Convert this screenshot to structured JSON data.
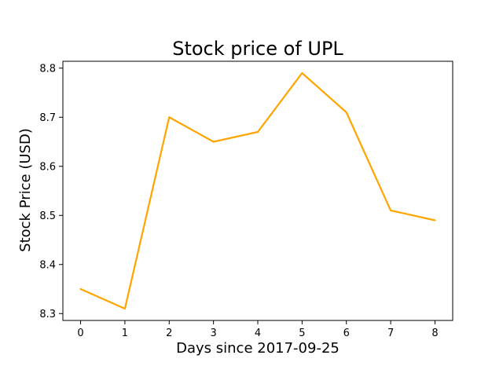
{
  "chart_data": {
    "type": "line",
    "title": "Stock price of UPL",
    "xlabel": "Days since 2017-09-25",
    "ylabel": "Stock Price (USD)",
    "xlim": [
      -0.4,
      8.4
    ],
    "ylim": [
      8.286,
      8.814
    ],
    "xticks": [
      0,
      1,
      2,
      3,
      4,
      5,
      6,
      7,
      8
    ],
    "yticks": [
      8.3,
      8.4,
      8.5,
      8.6,
      8.7,
      8.8
    ],
    "grid": false,
    "series": [
      {
        "color": "#FFA500",
        "x": [
          0,
          1,
          2,
          3,
          4,
          5,
          6,
          7,
          8
        ],
        "values": [
          8.35,
          8.31,
          8.7,
          8.65,
          8.67,
          8.79,
          8.71,
          8.51,
          8.49
        ]
      }
    ]
  }
}
